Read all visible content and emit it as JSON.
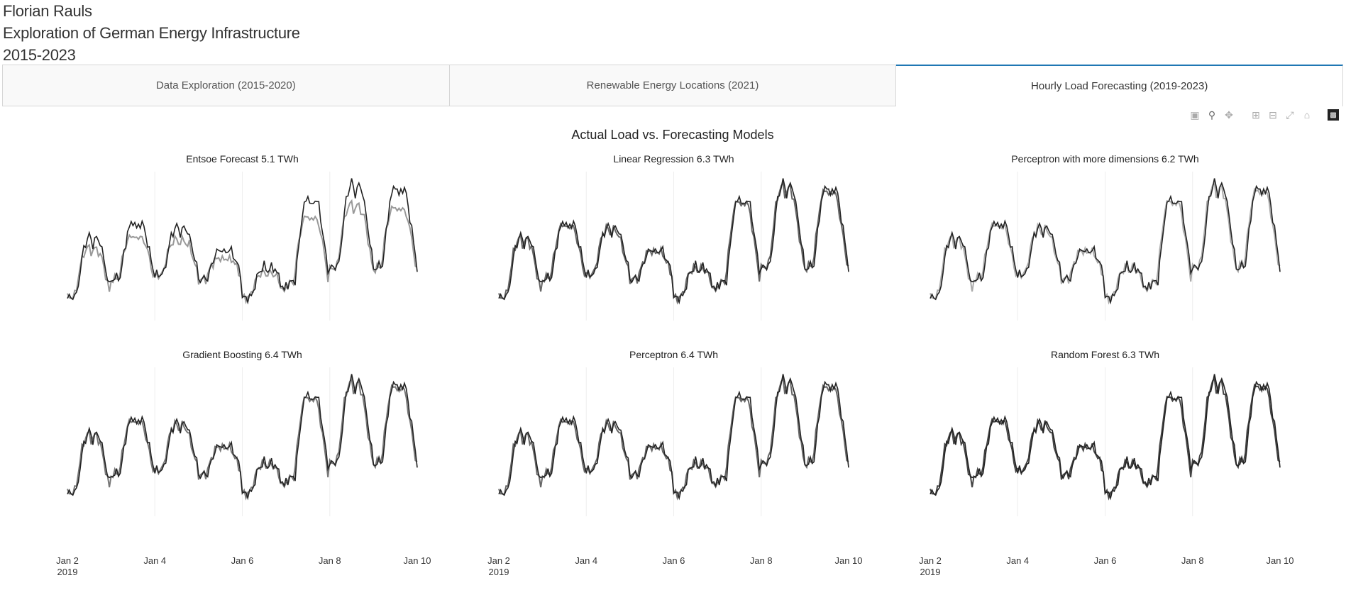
{
  "header": {
    "author": "Florian Rauls",
    "title": "Exploration of German Energy Infrastructure",
    "years": "2015-2023"
  },
  "tabs": [
    {
      "label": "Data Exploration (2015-2020)",
      "active": false
    },
    {
      "label": "Renewable Energy Locations (2021)",
      "active": false
    },
    {
      "label": "Hourly Load Forecasting (2019-2023)",
      "active": true
    }
  ],
  "modebar": {
    "icons": [
      "camera-icon",
      "zoom-icon",
      "pan-icon",
      "zoom-in-icon",
      "zoom-out-icon",
      "autoscale-icon",
      "reset-axes-icon",
      "plotly-logo-icon"
    ]
  },
  "chart_data": {
    "type": "line",
    "title": "Actual Load vs. Forecasting Models",
    "x_ticks": [
      "Jan 2",
      "Jan 4",
      "Jan 6",
      "Jan 8",
      "Jan 10"
    ],
    "x_tick_year": "2019",
    "x_range": [
      "2019-01-02",
      "2019-01-10"
    ],
    "grid": true,
    "subplots": [
      {
        "title": "Entsoe Forecast 5.1 TWh",
        "model_color": "#999999",
        "model_offset": 0.35
      },
      {
        "title": "Linear Regression 6.3 TWh",
        "model_color": "#666666",
        "model_offset": 0.04
      },
      {
        "title": "Perceptron with more dimensions 6.2 TWh",
        "model_color": "#aaaaaa",
        "model_offset": 0.03
      },
      {
        "title": "Gradient Boosting 6.4 TWh",
        "model_color": "#777777",
        "model_offset": 0.04
      },
      {
        "title": "Perceptron 6.4 TWh",
        "model_color": "#666666",
        "model_offset": 0.04
      },
      {
        "title": "Random Forest 6.3 TWh",
        "model_color": "#444444",
        "model_offset": 0.03
      }
    ],
    "series_colors": {
      "actual": "#222222"
    },
    "daily_peaks": [
      0.55,
      0.66,
      0.62,
      0.45,
      0.32,
      0.85,
      0.95,
      0.93
    ],
    "daily_troughs": [
      0.08,
      0.22,
      0.25,
      0.22,
      0.08,
      0.18,
      0.3,
      0.3
    ],
    "y_range": [
      0,
      1
    ]
  }
}
